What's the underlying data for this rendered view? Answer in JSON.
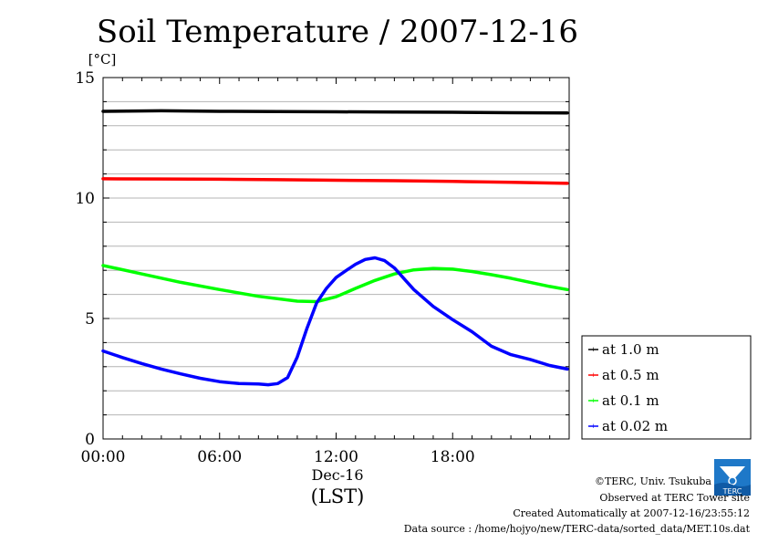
{
  "chart_data": {
    "type": "line",
    "title": "Soil Temperature / 2007-12-16",
    "ylabel": "[°C]",
    "xlabel": "(LST)",
    "x_date_label": "Dec-16",
    "x_range": [
      "00:00",
      "23:59"
    ],
    "x_ticks": [
      "00:00",
      "06:00",
      "12:00",
      "18:00"
    ],
    "ylim": [
      0,
      15
    ],
    "y_ticks": [
      "0",
      "5",
      "10",
      "15"
    ],
    "grid": true,
    "legend_position": "bottom-right outside",
    "series": [
      {
        "name": "at 1.0 m",
        "color": "#000000",
        "x": [
          0,
          3,
          6,
          9,
          12,
          15,
          18,
          21,
          23.9
        ],
        "y": [
          13.6,
          13.62,
          13.6,
          13.59,
          13.58,
          13.57,
          13.56,
          13.54,
          13.53
        ]
      },
      {
        "name": "at 0.5 m",
        "color": "#ff0000",
        "x": [
          0,
          3,
          6,
          9,
          12,
          15,
          18,
          21,
          23.9
        ],
        "y": [
          10.8,
          10.79,
          10.78,
          10.76,
          10.74,
          10.72,
          10.69,
          10.65,
          10.61
        ]
      },
      {
        "name": "at 0.1 m",
        "color": "#00ff00",
        "x": [
          0,
          2,
          4,
          6,
          8,
          10,
          11,
          12,
          13,
          14,
          15,
          16,
          17,
          18,
          19,
          20,
          21,
          22,
          23,
          23.9
        ],
        "y": [
          7.2,
          6.85,
          6.5,
          6.2,
          5.92,
          5.72,
          5.7,
          5.9,
          6.25,
          6.58,
          6.85,
          7.02,
          7.08,
          7.05,
          6.95,
          6.82,
          6.67,
          6.5,
          6.33,
          6.2
        ]
      },
      {
        "name": "at 0.02 m",
        "color": "#0000ff",
        "x": [
          0,
          1,
          2,
          3,
          4,
          5,
          6,
          7,
          8,
          8.5,
          9,
          9.5,
          10,
          10.5,
          11,
          11.5,
          12,
          12.5,
          13,
          13.5,
          14,
          14.5,
          15,
          15.5,
          16,
          17,
          18,
          19,
          20,
          21,
          22,
          23,
          23.9
        ],
        "y": [
          3.65,
          3.38,
          3.13,
          2.9,
          2.7,
          2.52,
          2.38,
          2.3,
          2.28,
          2.25,
          2.3,
          2.55,
          3.4,
          4.6,
          5.65,
          6.25,
          6.7,
          6.98,
          7.25,
          7.45,
          7.52,
          7.4,
          7.1,
          6.65,
          6.2,
          5.5,
          4.95,
          4.45,
          3.85,
          3.5,
          3.3,
          3.05,
          2.9
        ]
      }
    ]
  },
  "footer": {
    "copyright": "©TERC, Univ. Tsukuba",
    "site": "Observed at TERC Tower site",
    "created": "Created Automatically at 2007-12-16/23:55:12",
    "source": "Data source : /home/hojyo/new/TERC-data/sorted_data/MET.10s.dat",
    "logo_text": "TERC"
  }
}
